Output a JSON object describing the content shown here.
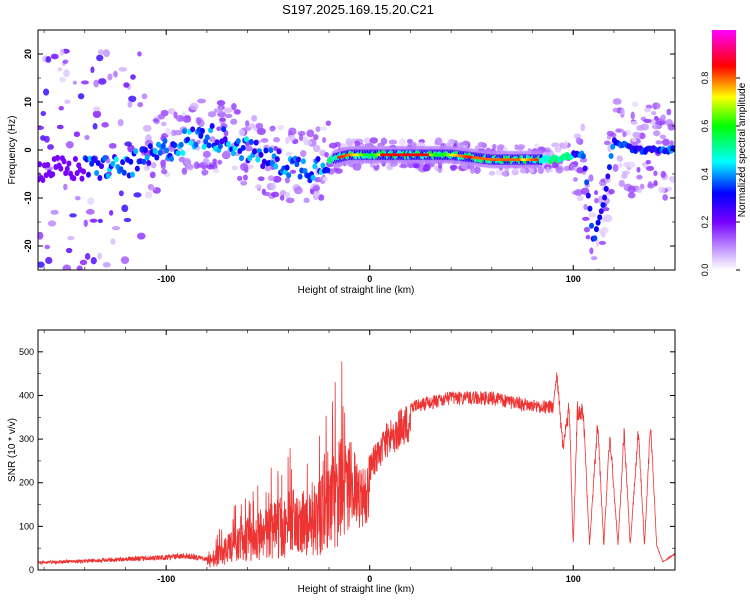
{
  "title": "S197.2025.169.15.20.C21",
  "chart_data": [
    {
      "type": "heatmap",
      "xlabel": "Height of straight line (km)",
      "ylabel": "Frequency (Hz)",
      "xlim": [
        -163,
        150
      ],
      "ylim": [
        -25,
        25
      ],
      "x_ticks": [
        -100,
        0,
        100
      ],
      "y_ticks": [
        -20,
        -10,
        0,
        10,
        20
      ],
      "colorbar": {
        "label": "Normalized spectral amplitude",
        "range": [
          0,
          1
        ],
        "ticks": [
          "0.0",
          "0.2",
          "0.4",
          "0.6",
          "0.8"
        ],
        "colors": [
          "#ffffff",
          "#7700ff",
          "#0000ff",
          "#00ffff",
          "#00ff00",
          "#ffff00",
          "#ff0000",
          "#ff00ff"
        ]
      },
      "ridge": {
        "x": [
          -163,
          -150,
          -140,
          -130,
          -120,
          -110,
          -100,
          -90,
          -80,
          -70,
          -60,
          -50,
          -40,
          -30,
          -20,
          -10,
          0,
          20,
          40,
          60,
          80,
          90,
          100,
          105,
          110,
          115,
          120,
          130,
          140,
          150
        ],
        "y": [
          -4,
          -4,
          -4,
          -3.5,
          -3.5,
          -2,
          0,
          2,
          3,
          2,
          0,
          -2,
          -3,
          -4,
          -2,
          -1,
          -1,
          -1,
          -1,
          -2,
          -2,
          -2,
          -1,
          -1,
          -19,
          -11,
          2,
          0,
          0,
          0
        ]
      }
    },
    {
      "type": "line",
      "xlabel": "Height of straight line (km)",
      "ylabel": "SNR (10 * v/v)",
      "xlim": [
        -163,
        150
      ],
      "ylim": [
        0,
        550
      ],
      "x_ticks": [
        -100,
        0,
        100
      ],
      "y_ticks": [
        0,
        100,
        200,
        300,
        400,
        500
      ],
      "line_color": "#ee3333",
      "envelope": {
        "x": [
          -163,
          -140,
          -120,
          -100,
          -90,
          -80,
          -70,
          -60,
          -50,
          -40,
          -30,
          -20,
          -15,
          -10,
          -5,
          0,
          10,
          20,
          30,
          40,
          50,
          60,
          70,
          80,
          90,
          92,
          95,
          98,
          100,
          102,
          105,
          108,
          112,
          115,
          118,
          122,
          125,
          128,
          132,
          135,
          138,
          141,
          144,
          150
        ],
        "y": [
          20,
          25,
          30,
          35,
          40,
          30,
          80,
          120,
          150,
          180,
          200,
          230,
          300,
          320,
          230,
          270,
          350,
          390,
          400,
          410,
          410,
          410,
          400,
          390,
          390,
          460,
          290,
          400,
          60,
          390,
          380,
          60,
          360,
          60,
          330,
          60,
          340,
          60,
          340,
          60,
          360,
          60,
          20,
          40
        ]
      }
    }
  ]
}
